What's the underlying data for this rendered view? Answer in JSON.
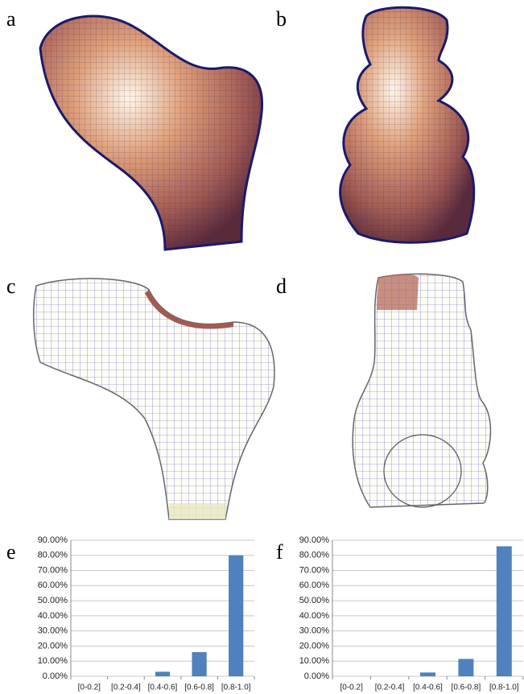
{
  "panels": {
    "labels": [
      "a",
      "b",
      "c",
      "d"
    ]
  },
  "chart_data": [
    {
      "type": "bar",
      "panel_label": "e",
      "categories": [
        "[0-0.2]",
        "[0.2-0.4]",
        "[0.4-0.6]",
        "[0.6-0.8]",
        "[0.8-1.0]"
      ],
      "values": [
        0,
        0,
        3,
        16,
        80
      ],
      "color": "#4f81bd",
      "ylim": [
        0,
        90
      ],
      "yticks": [
        {
          "value": 0,
          "label": "0.00%"
        },
        {
          "value": 10,
          "label": "10.00%"
        },
        {
          "value": 20,
          "label": "20.00%"
        },
        {
          "value": 30,
          "label": "30.00%"
        },
        {
          "value": 40,
          "label": "40.00%"
        },
        {
          "value": 50,
          "label": "50.00%"
        },
        {
          "value": 60,
          "label": "60.00%"
        },
        {
          "value": 70,
          "label": "70.00%"
        },
        {
          "value": 80,
          "label": "80.00%"
        },
        {
          "value": 90,
          "label": "90.00%"
        }
      ],
      "grid": true
    },
    {
      "type": "bar",
      "panel_label": "f",
      "categories": [
        "[0-0.2]",
        "[0.2-0.4]",
        "[0.4-0.6]",
        "[0.6-0.8]",
        "[0.8-1.0]"
      ],
      "values": [
        0,
        0,
        2.5,
        11.5,
        86
      ],
      "color": "#4f81bd",
      "ylim": [
        0,
        90
      ],
      "yticks": [
        {
          "value": 0,
          "label": "0.00%"
        },
        {
          "value": 10,
          "label": "10.00%"
        },
        {
          "value": 20,
          "label": "20.00%"
        },
        {
          "value": 30,
          "label": "30.00%"
        },
        {
          "value": 40,
          "label": "40.00%"
        },
        {
          "value": 50,
          "label": "50.00%"
        },
        {
          "value": 60,
          "label": "60.00%"
        },
        {
          "value": 70,
          "label": "70.00%"
        },
        {
          "value": 80,
          "label": "80.00%"
        },
        {
          "value": 90,
          "label": "90.00%"
        }
      ],
      "grid": true
    }
  ]
}
